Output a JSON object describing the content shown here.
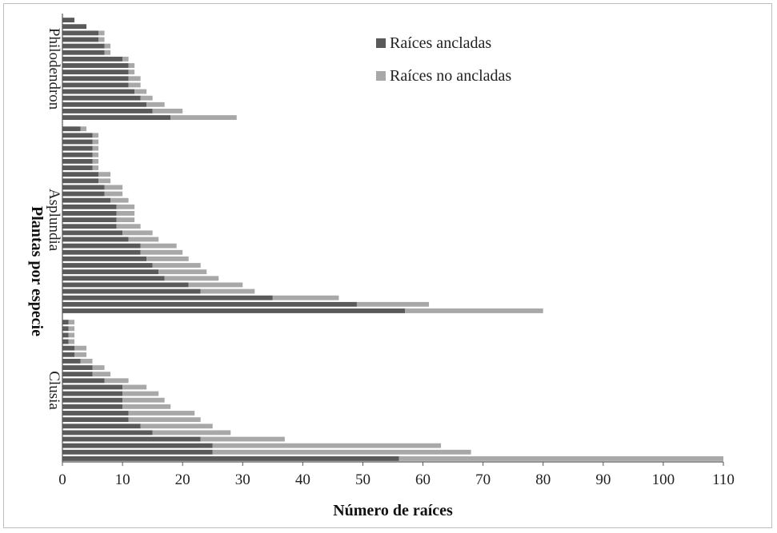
{
  "chart_data": {
    "type": "bar",
    "orientation": "horizontal",
    "stacked": true,
    "xlabel": "Número de raíces",
    "ylabel": "Plantas por especie",
    "xlim": [
      0,
      110
    ],
    "xticks": [
      0,
      10,
      20,
      30,
      40,
      50,
      60,
      70,
      80,
      90,
      100,
      110
    ],
    "grid": false,
    "legend_position": "top-right",
    "series_meta": [
      {
        "name": "Raíces ancladas",
        "color": "#5a5a5a"
      },
      {
        "name": "Raíces no ancladas",
        "color": "#a8a8a8"
      }
    ],
    "groups": [
      {
        "name": "Philodendron",
        "anchored": [
          2,
          4,
          6,
          6,
          7,
          7,
          10,
          11,
          11,
          11,
          11,
          12,
          13,
          14,
          15,
          18
        ],
        "not_anchored": [
          0,
          0,
          1,
          1,
          1,
          1,
          1,
          1,
          1,
          2,
          2,
          2,
          2,
          3,
          5,
          11
        ]
      },
      {
        "name": "Asplundia",
        "anchored": [
          3,
          5,
          5,
          5,
          5,
          5,
          5,
          6,
          6,
          7,
          7,
          8,
          9,
          9,
          9,
          9,
          10,
          11,
          13,
          13,
          14,
          15,
          16,
          17,
          21,
          23,
          35,
          49,
          57
        ],
        "not_anchored": [
          1,
          1,
          1,
          1,
          1,
          1,
          1,
          2,
          2,
          3,
          3,
          3,
          3,
          3,
          3,
          4,
          5,
          5,
          6,
          7,
          7,
          8,
          8,
          9,
          9,
          9,
          11,
          12,
          23
        ]
      },
      {
        "name": "Clusia",
        "anchored": [
          1,
          1,
          1,
          1,
          2,
          2,
          3,
          5,
          5,
          7,
          10,
          10,
          10,
          10,
          11,
          11,
          13,
          15,
          23,
          25,
          25,
          56
        ],
        "not_anchored": [
          1,
          1,
          1,
          1,
          2,
          2,
          2,
          2,
          3,
          4,
          4,
          6,
          7,
          8,
          11,
          12,
          12,
          13,
          14,
          38,
          43,
          54
        ]
      }
    ]
  }
}
